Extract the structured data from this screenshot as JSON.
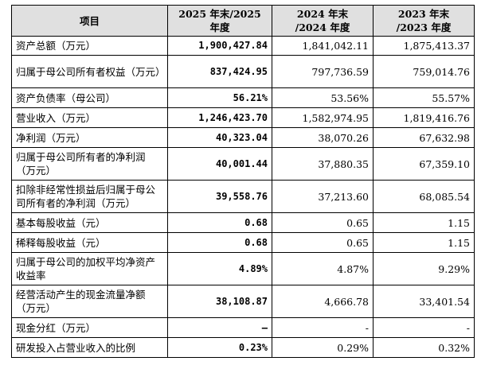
{
  "table": {
    "headers": [
      "项目",
      "2025 年末/2025\n年度",
      "2024 年末\n/2024 年度",
      "2023 年末\n/2023 年度"
    ],
    "rows": [
      {
        "label": "资产总额（万元）",
        "v2025": "1,900,427.84",
        "v2024": "1,841,042.11",
        "v2023": "1,875,413.37",
        "h": 24
      },
      {
        "label": "归属于母公司所有者权益（万元）",
        "v2025": "837,424.95",
        "v2024": "797,736.59",
        "v2023": "759,014.76",
        "h": 41
      },
      {
        "label": "资产负债率（母公司）",
        "v2025": "56.21%",
        "v2024": "53.56%",
        "v2023": "55.57%",
        "h": 25
      },
      {
        "label": "营业收入（万元）",
        "v2025": "1,246,423.70",
        "v2024": "1,582,974.95",
        "v2023": "1,819,416.76",
        "h": 25
      },
      {
        "label": "净利润（万元）",
        "v2025": "40,323.04",
        "v2024": "38,070.26",
        "v2023": "67,632.98",
        "h": 25
      },
      {
        "label": "归属于母公司所有者的净利润（万元）",
        "v2025": "40,001.44",
        "v2024": "37,880.35",
        "v2023": "67,359.10",
        "h": 41
      },
      {
        "label": "扣除非经常性损益后归属于母公司所有者的净利润（万元）",
        "v2025": "39,558.76",
        "v2024": "37,213.60",
        "v2023": "68,085.54",
        "h": 41
      },
      {
        "label": "基本每股收益（元）",
        "v2025": "0.68",
        "v2024": "0.65",
        "v2023": "1.15",
        "h": 25
      },
      {
        "label": "稀释每股收益（元）",
        "v2025": "0.68",
        "v2024": "0.65",
        "v2023": "1.15",
        "h": 25
      },
      {
        "label": "归属于母公司的加权平均净资产收益率",
        "v2025": "4.89%",
        "v2024": "4.87%",
        "v2023": "9.29%",
        "h": 41
      },
      {
        "label": "经营活动产生的现金流量净额（万元）",
        "v2025": "38,108.87",
        "v2024": "4,666.78",
        "v2023": "33,401.54",
        "h": 41
      },
      {
        "label": "现金分红（万元）",
        "v2025": "–",
        "v2024": "-",
        "v2023": "-",
        "h": 25
      },
      {
        "label": "研发投入占营业收入的比例",
        "v2025": "0.23%",
        "v2024": "0.29%",
        "v2023": "0.32%",
        "h": 25
      }
    ]
  }
}
